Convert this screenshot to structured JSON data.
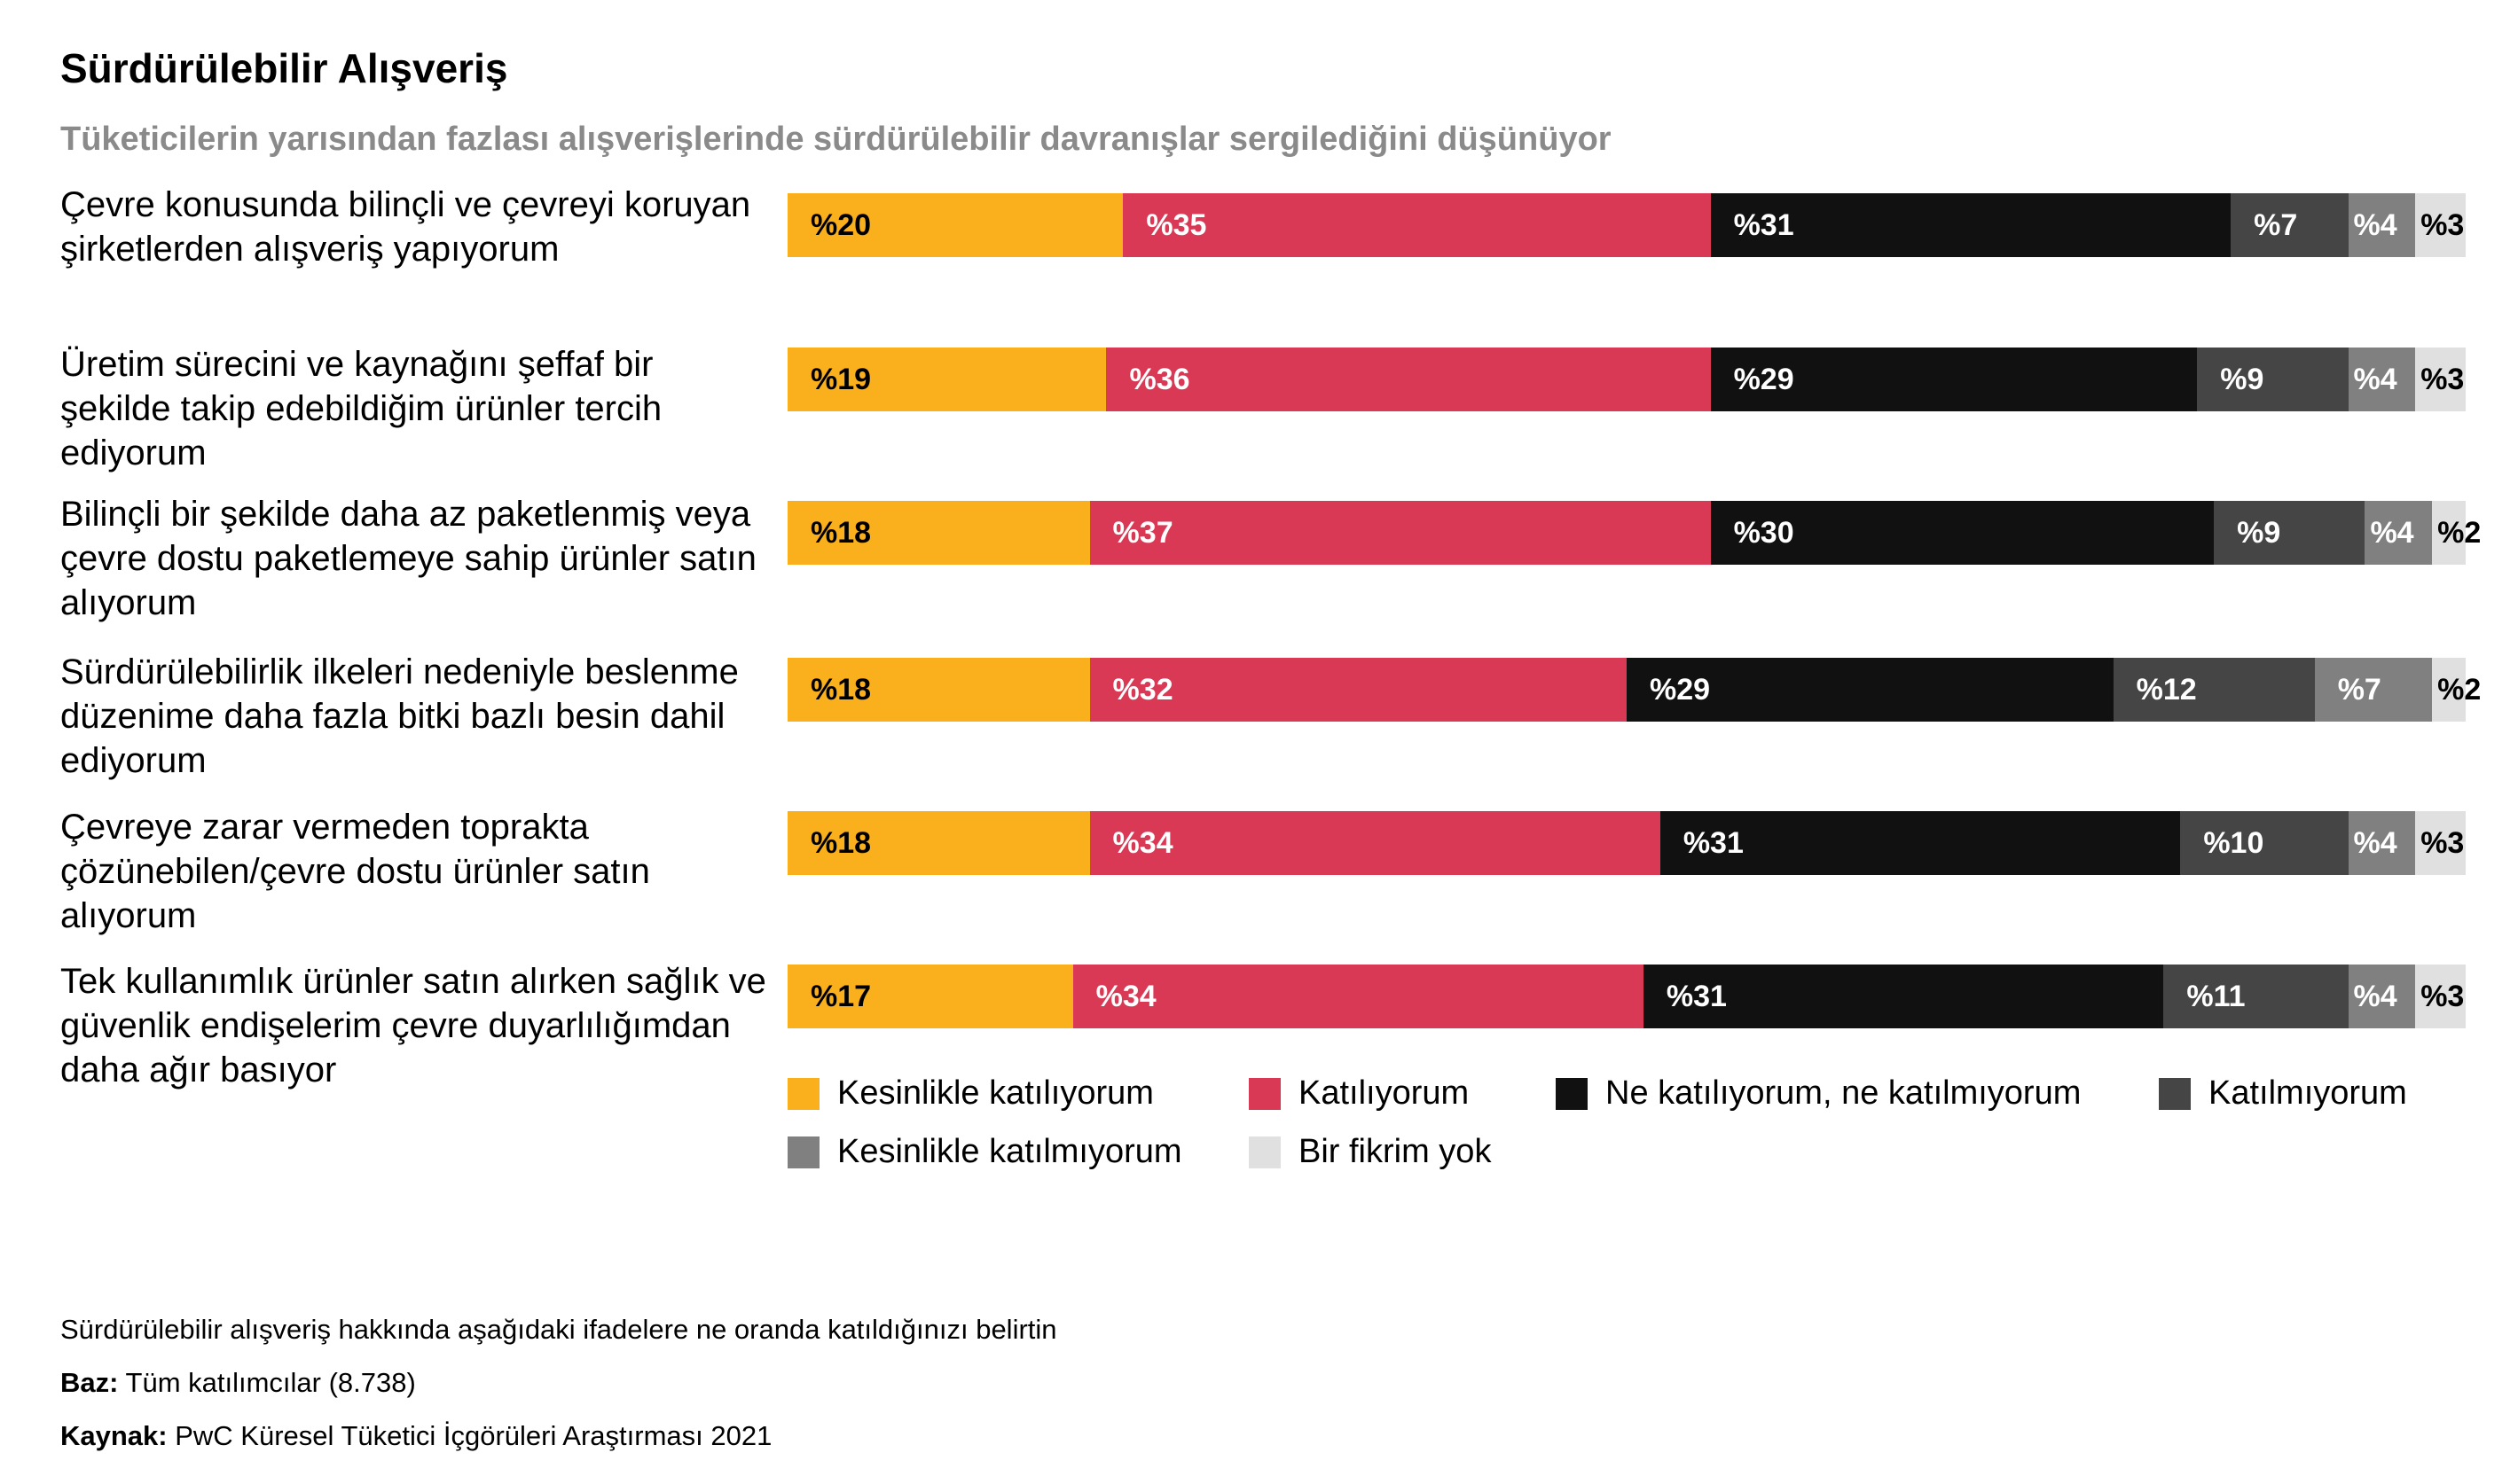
{
  "header": {
    "title": "Sürdürülebilir Alışveriş",
    "subtitle": "Tüketicilerin yarısından fazlası alışverişlerinde sürdürülebilir davranışlar sergilediğini düşünüyor"
  },
  "colors": {
    "strongly_agree": "#f9b01c",
    "agree": "#d93954",
    "neutral": "#111111",
    "disagree": "#454545",
    "strongly_disagree": "#808080",
    "no_opinion": "#e0e0e0",
    "label_light": "#ffffff",
    "label_dark": "#000000"
  },
  "chart_data": {
    "type": "bar",
    "orientation": "horizontal",
    "stacked": true,
    "value_prefix": "%",
    "categories": [
      "Çevre konusunda bilinçli ve çevreyi koruyan şirketlerden alışveriş yapıyorum",
      "Üretim sürecini ve kaynağını şeffaf bir şekilde takip edebildiğim ürünler tercih ediyorum",
      "Bilinçli bir şekilde daha az paketlenmiş veya çevre dostu paketlemeye sahip ürünler satın alıyorum",
      "Sürdürülebilirlik ilkeleri nedeniyle beslenme düzenime daha fazla bitki bazlı besin dahil ediyorum",
      "Çevreye zarar vermeden toprakta çözünebilen/çevre dostu ürünler satın alıyorum",
      "Tek kullanımlık ürünler satın alırken sağlık ve güvenlik endişelerim çevre duyarlılığımdan daha ağır basıyor"
    ],
    "series": [
      {
        "name": "Kesinlikle katılıyorum",
        "values": [
          20,
          19,
          18,
          18,
          18,
          17
        ]
      },
      {
        "name": "Katılıyorum",
        "values": [
          35,
          36,
          37,
          32,
          34,
          34
        ]
      },
      {
        "name": "Ne katılıyorum, ne katılmıyorum",
        "values": [
          31,
          29,
          30,
          29,
          31,
          31
        ]
      },
      {
        "name": "Katılmıyorum",
        "values": [
          7,
          9,
          9,
          12,
          10,
          11
        ]
      },
      {
        "name": "Kesinlikle katılmıyorum",
        "values": [
          4,
          4,
          4,
          7,
          4,
          4
        ]
      },
      {
        "name": "Bir fikrim yok",
        "values": [
          3,
          3,
          2,
          2,
          3,
          3
        ]
      }
    ],
    "legend_position": "bottom"
  },
  "footnotes": {
    "question": "Sürdürülebilir alışveriş hakkında aşağıdaki ifadelere ne oranda katıldığınızı belirtin",
    "base_label": "Baz:",
    "base_value": "Tüm katılımcılar (8.738)",
    "source_label": "Kaynak:",
    "source_value": "PwC Küresel Tüketici İçgörüleri Araştırması 2021"
  }
}
